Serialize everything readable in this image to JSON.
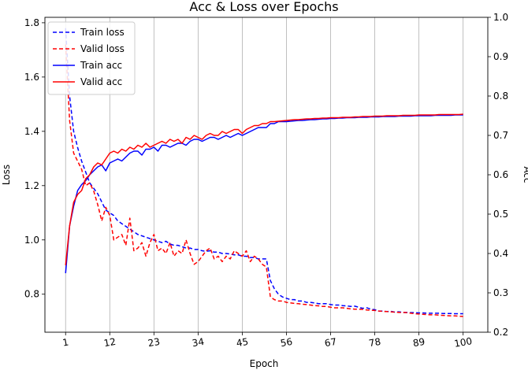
{
  "chart_data": {
    "type": "line",
    "title": "Acc & Loss over Epochs",
    "xlabel": "Epoch",
    "ylabel_left": "Loss",
    "ylabel_right": "Acc",
    "xlim": [
      -4.15,
      106.15
    ],
    "ylim_left": [
      0.66,
      1.82
    ],
    "ylim_right": [
      0.2,
      1.0
    ],
    "xticks": [
      1,
      12,
      23,
      34,
      45,
      56,
      67,
      78,
      89,
      100
    ],
    "yticks_left": [
      0.8,
      1.0,
      1.2,
      1.4,
      1.6,
      1.8
    ],
    "yticks_right": [
      0.2,
      0.3,
      0.4,
      0.5,
      0.6,
      0.7,
      0.8,
      0.9,
      1.0
    ],
    "xgrid": true,
    "legend_position": "upper-left",
    "colors": {
      "train": "#0000ff",
      "valid": "#ff0000"
    },
    "series": [
      {
        "name": "Train loss",
        "axis": "left",
        "style": "dashed",
        "color": "#0000ff",
        "values": [
          1.78,
          1.53,
          1.4,
          1.34,
          1.29,
          1.25,
          1.21,
          1.19,
          1.17,
          1.14,
          1.11,
          1.1,
          1.09,
          1.07,
          1.06,
          1.05,
          1.04,
          1.03,
          1.02,
          1.015,
          1.01,
          1.005,
          1.0,
          0.995,
          0.99,
          0.995,
          0.985,
          0.98,
          0.98,
          0.975,
          0.97,
          0.97,
          0.965,
          0.965,
          0.96,
          0.958,
          0.96,
          0.955,
          0.955,
          0.95,
          0.95,
          0.948,
          0.945,
          0.945,
          0.94,
          0.94,
          0.935,
          0.935,
          0.93,
          0.93,
          0.93,
          0.85,
          0.82,
          0.8,
          0.79,
          0.785,
          0.78,
          0.78,
          0.775,
          0.775,
          0.77,
          0.77,
          0.768,
          0.765,
          0.765,
          0.765,
          0.762,
          0.76,
          0.76,
          0.758,
          0.757,
          0.755,
          0.756,
          0.752,
          0.748,
          0.75,
          0.745,
          0.743,
          0.738,
          0.738,
          0.736,
          0.737,
          0.734,
          0.735,
          0.733,
          0.733,
          0.732,
          0.732,
          0.731,
          0.731,
          0.73,
          0.73,
          0.73,
          0.73,
          0.729,
          0.729,
          0.729,
          0.728,
          0.728,
          0.728
        ]
      },
      {
        "name": "Valid loss",
        "axis": "left",
        "style": "dashed",
        "color": "#ff0000",
        "values": [
          1.72,
          1.44,
          1.32,
          1.29,
          1.26,
          1.2,
          1.21,
          1.18,
          1.13,
          1.07,
          1.12,
          1.09,
          1.0,
          1.01,
          1.02,
          0.98,
          1.08,
          0.96,
          0.97,
          0.99,
          0.94,
          0.99,
          1.02,
          0.96,
          0.97,
          0.95,
          0.99,
          0.94,
          0.96,
          0.95,
          1.0,
          0.95,
          0.91,
          0.92,
          0.94,
          0.96,
          0.97,
          0.93,
          0.94,
          0.92,
          0.94,
          0.93,
          0.96,
          0.95,
          0.94,
          0.96,
          0.92,
          0.94,
          0.93,
          0.91,
          0.9,
          0.79,
          0.78,
          0.775,
          0.775,
          0.77,
          0.768,
          0.766,
          0.765,
          0.763,
          0.762,
          0.76,
          0.758,
          0.757,
          0.755,
          0.755,
          0.752,
          0.75,
          0.75,
          0.75,
          0.748,
          0.746,
          0.745,
          0.745,
          0.744,
          0.742,
          0.741,
          0.74,
          0.738,
          0.737,
          0.736,
          0.735,
          0.734,
          0.733,
          0.733,
          0.732,
          0.73,
          0.728,
          0.727,
          0.726,
          0.725,
          0.724,
          0.724,
          0.723,
          0.722,
          0.721,
          0.72,
          0.72,
          0.719,
          0.718
        ]
      },
      {
        "name": "Train acc",
        "axis": "right",
        "style": "solid",
        "color": "#0000ff",
        "values": [
          0.35,
          0.47,
          0.52,
          0.56,
          0.575,
          0.585,
          0.6,
          0.61,
          0.62,
          0.625,
          0.61,
          0.63,
          0.635,
          0.64,
          0.635,
          0.645,
          0.655,
          0.66,
          0.66,
          0.65,
          0.665,
          0.665,
          0.67,
          0.66,
          0.675,
          0.675,
          0.67,
          0.675,
          0.68,
          0.68,
          0.675,
          0.685,
          0.69,
          0.69,
          0.685,
          0.69,
          0.695,
          0.695,
          0.69,
          0.695,
          0.7,
          0.695,
          0.7,
          0.705,
          0.7,
          0.705,
          0.71,
          0.715,
          0.72,
          0.72,
          0.72,
          0.73,
          0.73,
          0.735,
          0.735,
          0.735,
          0.736,
          0.737,
          0.738,
          0.738,
          0.739,
          0.74,
          0.74,
          0.741,
          0.742,
          0.742,
          0.743,
          0.743,
          0.744,
          0.744,
          0.745,
          0.745,
          0.745,
          0.746,
          0.746,
          0.746,
          0.747,
          0.747,
          0.747,
          0.748,
          0.748,
          0.748,
          0.748,
          0.749,
          0.749,
          0.749,
          0.749,
          0.75,
          0.75,
          0.75,
          0.75,
          0.75,
          0.751,
          0.751,
          0.751,
          0.751,
          0.751,
          0.752,
          0.752,
          0.752
        ]
      },
      {
        "name": "Valid acc",
        "axis": "right",
        "style": "solid",
        "color": "#ff0000",
        "values": [
          0.37,
          0.47,
          0.53,
          0.55,
          0.56,
          0.59,
          0.6,
          0.62,
          0.63,
          0.625,
          0.64,
          0.655,
          0.66,
          0.655,
          0.665,
          0.66,
          0.67,
          0.665,
          0.675,
          0.67,
          0.68,
          0.67,
          0.675,
          0.68,
          0.685,
          0.68,
          0.69,
          0.685,
          0.69,
          0.68,
          0.695,
          0.69,
          0.7,
          0.695,
          0.69,
          0.7,
          0.705,
          0.7,
          0.7,
          0.71,
          0.705,
          0.71,
          0.715,
          0.715,
          0.705,
          0.715,
          0.72,
          0.725,
          0.725,
          0.73,
          0.73,
          0.735,
          0.735,
          0.736,
          0.737,
          0.738,
          0.739,
          0.74,
          0.74,
          0.741,
          0.742,
          0.742,
          0.743,
          0.743,
          0.744,
          0.744,
          0.745,
          0.745,
          0.745,
          0.746,
          0.746,
          0.746,
          0.747,
          0.747,
          0.748,
          0.748,
          0.748,
          0.749,
          0.749,
          0.749,
          0.75,
          0.75,
          0.75,
          0.75,
          0.751,
          0.751,
          0.751,
          0.751,
          0.752,
          0.752,
          0.752,
          0.752,
          0.752,
          0.753,
          0.753,
          0.753,
          0.753,
          0.753,
          0.753,
          0.754
        ]
      }
    ]
  }
}
